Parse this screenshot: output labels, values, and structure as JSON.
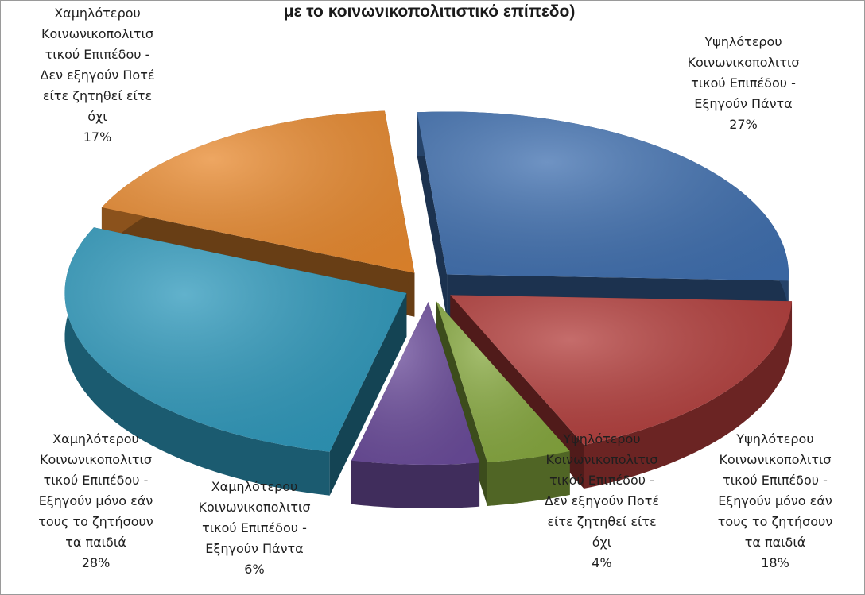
{
  "chart_data": {
    "type": "pie",
    "title": "με το κοινωνικοπολιτιστικό επίπεδο)",
    "three_d": true,
    "exploded": true,
    "slices": [
      {
        "label": "Υψηλότερου Κοινωνικοπολιτιστικού Επιπέδου - Εξηγούν Πάντα",
        "value": 27,
        "percent_label": "27%",
        "color": "#3f6faf"
      },
      {
        "label": "Υψηλότερου Κοινωνικοπολιτιστικού Επιπέδου - Εξηγούν μόνο εάν τους το ζητήσουν τα παιδιά",
        "value": 18,
        "percent_label": "18%",
        "color": "#b23c3a"
      },
      {
        "label": "Υψηλότερου Κοινωνικοπολιτιστικού Επιπέδου - Δεν εξηγούν Ποτέ είτε ζητηθεί είτε όχι",
        "value": 4,
        "percent_label": "4%",
        "color": "#86a83e"
      },
      {
        "label": "Χαμηλότερου Κοινωνικοπολιτιστικού Επιπέδου - Εξηγούν Πάντα",
        "value": 6,
        "percent_label": "6%",
        "color": "#6a4b9a"
      },
      {
        "label": "Χαμηλότερου Κοινωνικοπολιτιστικού Επιπέδου - Εξηγούν μόνο εάν τους το ζητήσουν τα παιδιά",
        "value": 28,
        "percent_label": "28%",
        "color": "#2d98bb"
      },
      {
        "label": "Χαμηλότερου Κοινωνικοπολιτιστικού Επιπέδου - Δεν εξηγούν Ποτέ είτε ζητηθεί είτε όχι",
        "value": 17,
        "percent_label": "17%",
        "color": "#e8892e"
      }
    ],
    "data_labels": [
      {
        "lines": [
          "Υψηλότερου",
          "Κοινωνικοπολιτισ",
          "τικού Επιπέδου -",
          "Εξηγούν Πάντα"
        ],
        "percent": "27%"
      },
      {
        "lines": [
          "Υψηλότερου",
          "Κοινωνικοπολιτισ",
          "τικού Επιπέδου -",
          "Εξηγούν μόνο εάν",
          "τους το ζητήσουν",
          "τα παιδιά"
        ],
        "percent": "18%"
      },
      {
        "lines": [
          "Υψηλότερου",
          "Κοινωνικοπολιτισ",
          "τικού Επιπέδου -",
          "Δεν εξηγούν Ποτέ",
          "είτε ζητηθεί είτε",
          "όχι"
        ],
        "percent": "4%"
      },
      {
        "lines": [
          "Χαμηλότερου",
          "Κοινωνικοπολιτισ",
          "τικού Επιπέδου -",
          "Εξηγούν Πάντα"
        ],
        "percent": "6%"
      },
      {
        "lines": [
          "Χαμηλότερου",
          "Κοινωνικοπολιτισ",
          "τικού Επιπέδου -",
          "Εξηγούν μόνο εάν",
          "τους το ζητήσουν",
          "τα παιδιά"
        ],
        "percent": "28%"
      },
      {
        "lines": [
          "Χαμηλότερου",
          "Κοινωνικοπολιτισ",
          "τικού Επιπέδου -",
          "Δεν εξηγούν Ποτέ",
          "είτε ζητηθεί είτε",
          "όχι"
        ],
        "percent": "17%"
      }
    ]
  }
}
